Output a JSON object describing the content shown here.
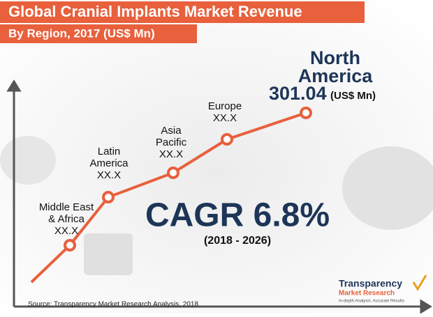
{
  "header": {
    "title": "Global Cranial Implants Market Revenue",
    "subtitle": "By Region, 2017 (US$ Mn)"
  },
  "points": [
    {
      "lines": [
        "Middle East",
        "& Africa"
      ],
      "value": "XX.X"
    },
    {
      "lines": [
        "Latin",
        "America"
      ],
      "value": "XX.X"
    },
    {
      "lines": [
        "Asia",
        "Pacific"
      ],
      "value": "XX.X"
    },
    {
      "lines": [
        "Europe"
      ],
      "value": "XX.X"
    },
    {
      "lines": [
        "North",
        "America"
      ],
      "value": "301.04",
      "unit": "(US$ Mn)"
    }
  ],
  "cagr": {
    "text": "CAGR 6.8%",
    "period": "(2018 - 2026)"
  },
  "source": "Source: Transparency Market Research Analysis, 2018",
  "logo": {
    "line1": "Transparency",
    "line2": "Market Research",
    "tagline": "In-depth Analysis. Accurate Results"
  }
}
